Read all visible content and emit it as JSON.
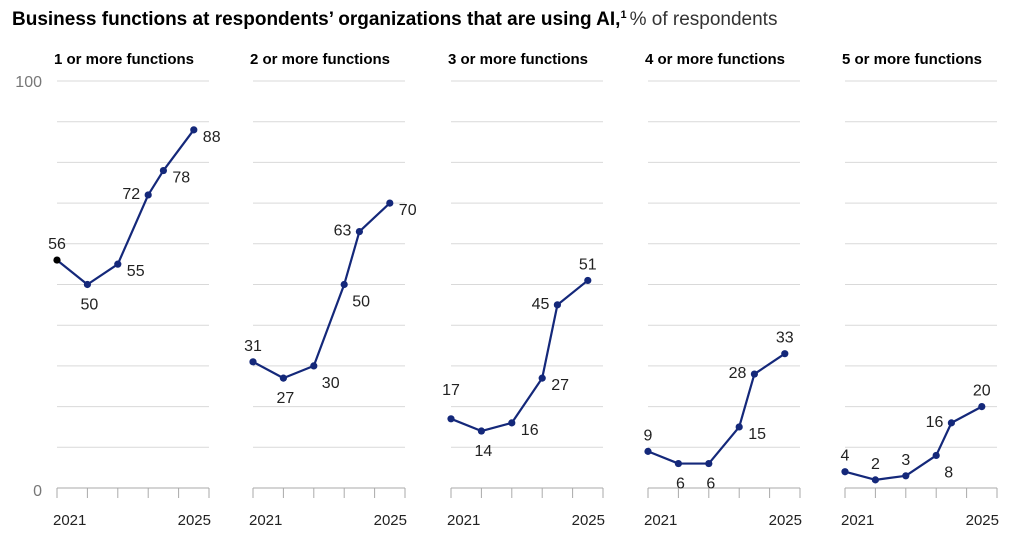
{
  "chart_data": {
    "type": "line",
    "title": "Business functions at respondents’ organizations that are using AI,",
    "title_footnote": "1",
    "subtitle": "% of respondents",
    "ylim": [
      0,
      100
    ],
    "yticks": [
      0,
      100
    ],
    "grid_step": 10,
    "grid": true,
    "xticks": [
      0,
      1,
      2,
      3,
      4,
      5
    ],
    "xtick_labels": [
      "2021",
      "",
      "",
      "",
      "",
      "2025"
    ],
    "x": [
      0,
      1,
      2,
      3,
      3.5,
      4.5
    ],
    "line_color": "#14287a",
    "first_point_color": "#000000",
    "panels": [
      {
        "title": "1 or more functions",
        "values": [
          56,
          50,
          55,
          72,
          78,
          88
        ]
      },
      {
        "title": "2 or more functions",
        "values": [
          31,
          27,
          30,
          50,
          63,
          70
        ]
      },
      {
        "title": "3 or more functions",
        "values": [
          17,
          14,
          16,
          27,
          45,
          51
        ]
      },
      {
        "title": "4 or more functions",
        "values": [
          9,
          6,
          6,
          15,
          28,
          33
        ]
      },
      {
        "title": "5 or more functions",
        "values": [
          4,
          2,
          3,
          8,
          16,
          20
        ]
      }
    ]
  }
}
